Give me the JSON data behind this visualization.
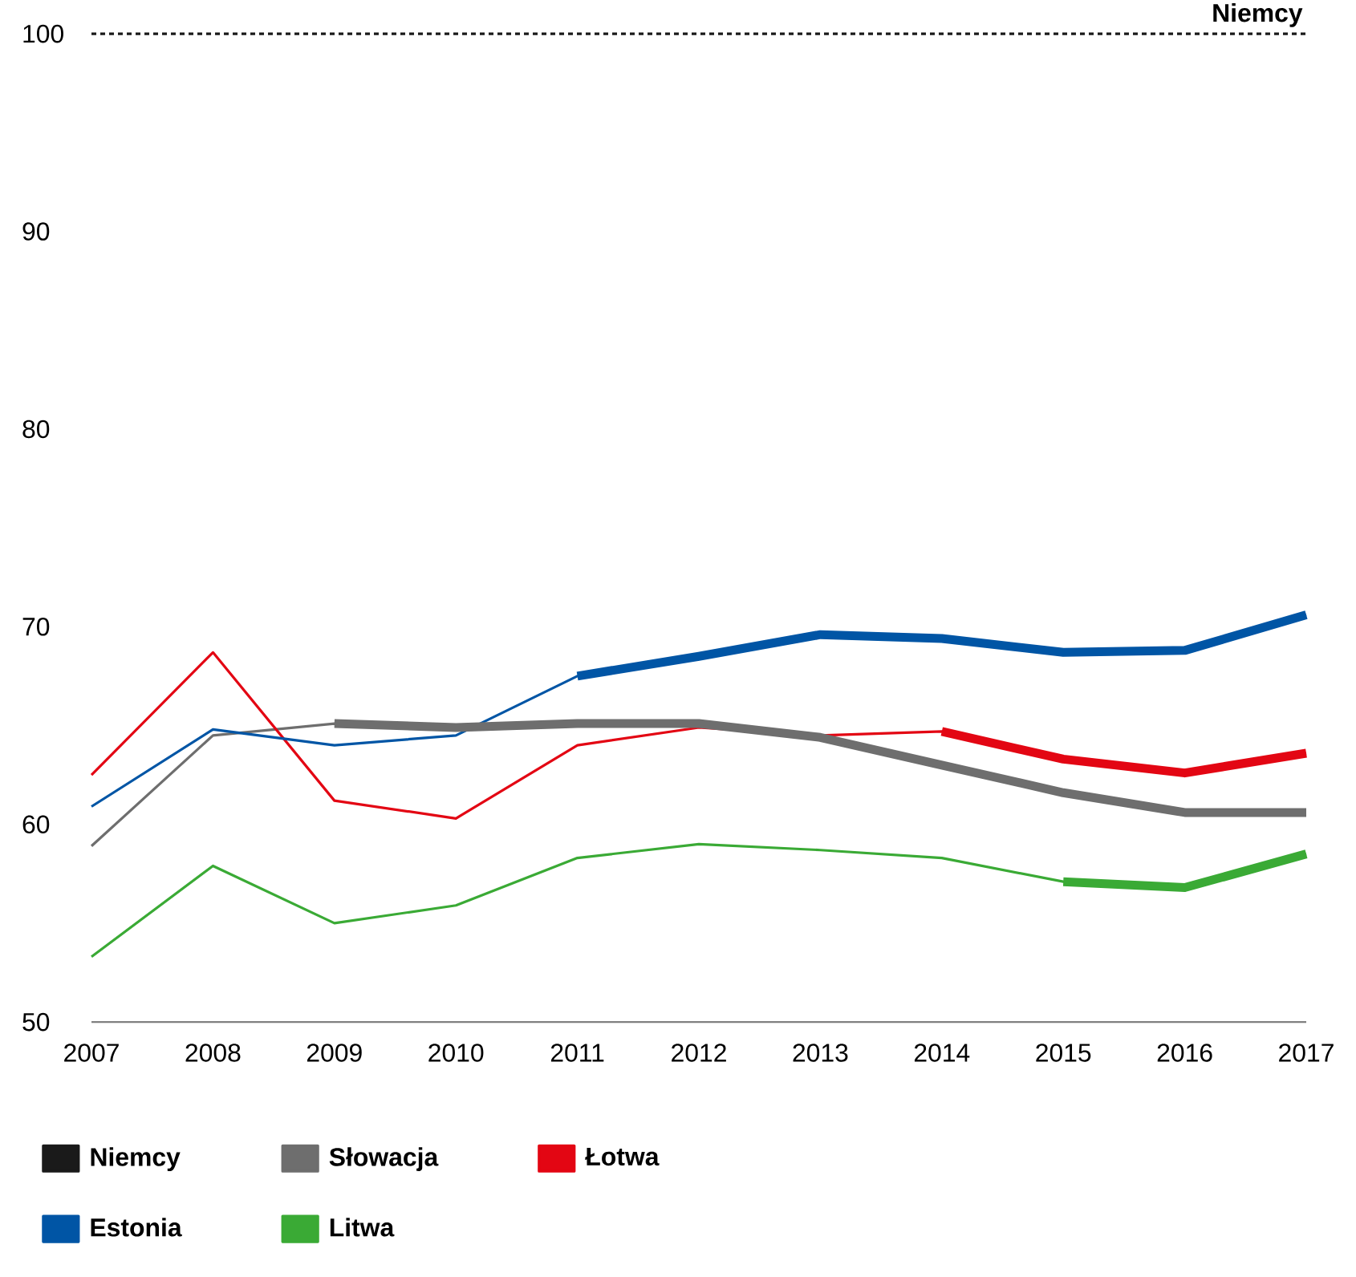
{
  "chart_data": {
    "type": "line",
    "x": [
      2007,
      2008,
      2009,
      2010,
      2011,
      2012,
      2013,
      2014,
      2015,
      2016,
      2017
    ],
    "xlim": [
      2007,
      2017
    ],
    "xticks": [
      2007,
      2008,
      2009,
      2010,
      2011,
      2012,
      2013,
      2014,
      2015,
      2016,
      2017
    ],
    "ylim": [
      50,
      100
    ],
    "yticks": [
      50,
      60,
      70,
      80,
      90,
      100
    ],
    "legend": "bottom",
    "marker": "none",
    "series": [
      {
        "name": "Niemcy",
        "color": "#1a1a1a",
        "line_style": "dashed",
        "values": [
          100,
          100,
          100,
          100,
          100,
          100,
          100,
          100,
          100,
          100,
          100
        ]
      },
      {
        "name": "Słowacja",
        "color": "#6e6e6e",
        "values": [
          58.9,
          64.5,
          65.1,
          64.9,
          65.1,
          65.1,
          64.4,
          63.0,
          61.6,
          60.6,
          60.6
        ]
      },
      {
        "name": "Łotwa",
        "color": "#e30613",
        "values": [
          62.5,
          68.7,
          61.2,
          60.3,
          64.0,
          64.9,
          64.5,
          64.7,
          63.3,
          62.6,
          63.6
        ]
      },
      {
        "name": "Estonia",
        "color": "#0055a5",
        "values": [
          60.9,
          64.8,
          64.0,
          64.5,
          67.5,
          68.5,
          69.6,
          69.4,
          68.7,
          68.8,
          70.6
        ]
      },
      {
        "name": "Litwa",
        "color": "#3aaa35",
        "values": [
          53.3,
          57.9,
          55.0,
          55.9,
          58.3,
          59.0,
          58.7,
          58.3,
          57.1,
          56.8,
          58.5
        ]
      },
      {
        "color": "#6e6e6e",
        "values": [
          null,
          null,
          65.1,
          64.9,
          65.1,
          65.1,
          64.4,
          63.0,
          61.6,
          60.6,
          60.6
        ]
      },
      {
        "color": "#e30613",
        "values": [
          null,
          null,
          null,
          null,
          null,
          null,
          null,
          64.7,
          63.3,
          62.6,
          63.6
        ]
      },
      {
        "color": "#0055a5",
        "values": [
          null,
          null,
          null,
          null,
          67.5,
          68.5,
          69.6,
          69.4,
          68.7,
          68.8,
          70.6
        ]
      },
      {
        "color": "#3aaa35",
        "values": [
          null,
          null,
          null,
          null,
          null,
          null,
          null,
          null,
          57.1,
          56.8,
          58.5
        ]
      }
    ],
    "annotations": [
      {
        "text": "Niemcy",
        "x": 2017,
        "y": 100
      }
    ]
  }
}
